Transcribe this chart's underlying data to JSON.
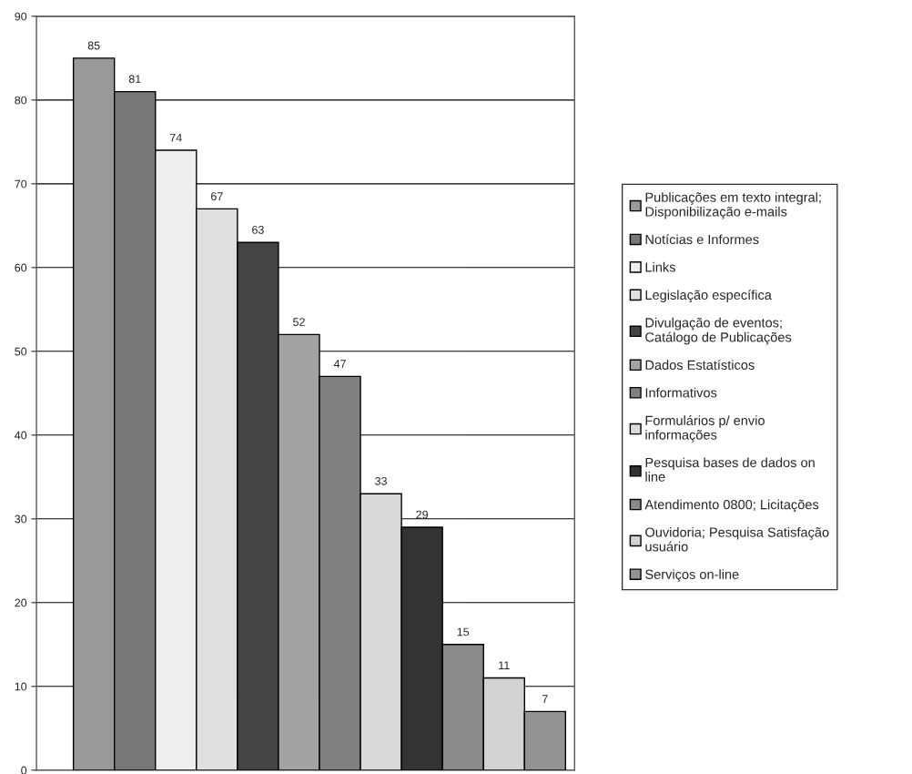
{
  "chart_data": {
    "type": "bar",
    "categories": [
      null
    ],
    "series": [
      {
        "name": "Publicações em texto integral;\nDisponibilização e-mails",
        "color": "#999999",
        "values": [
          85
        ]
      },
      {
        "name": "Notícias e Informes",
        "color": "#777777",
        "values": [
          81
        ]
      },
      {
        "name": "Links",
        "color": "#eeeeee",
        "values": [
          74
        ]
      },
      {
        "name": "Legislação específica",
        "color": "#e0e0e0",
        "values": [
          67
        ]
      },
      {
        "name": "Divulgação de eventos;\nCatálogo de Publicações",
        "color": "#444444",
        "values": [
          63
        ]
      },
      {
        "name": "Dados Estatísticos",
        "color": "#a3a3a3",
        "values": [
          52
        ]
      },
      {
        "name": "Informativos",
        "color": "#808080",
        "values": [
          47
        ]
      },
      {
        "name": "Formulários p/ envio\ninformações",
        "color": "#dadada",
        "values": [
          33
        ]
      },
      {
        "name": "Pesquisa bases de dados on\nline",
        "color": "#333333",
        "values": [
          29
        ]
      },
      {
        "name": "Atendimento 0800; Licitações",
        "color": "#8a8a8a",
        "values": [
          15
        ]
      },
      {
        "name": "Ouvidoria; Pesquisa Satisfação\nusuário",
        "color": "#d2d2d2",
        "values": [
          11
        ]
      },
      {
        "name": "Serviços on-line",
        "color": "#939393",
        "values": [
          7
        ]
      }
    ],
    "ylim": [
      0,
      90
    ],
    "yticks": [
      0,
      10,
      20,
      30,
      40,
      50,
      60,
      70,
      80,
      90
    ],
    "grid": "y",
    "legend": "right",
    "data_labels": true
  }
}
